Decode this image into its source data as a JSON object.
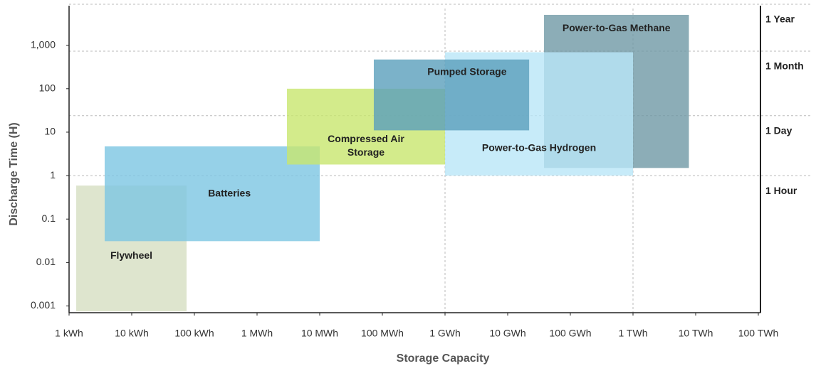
{
  "chart_data": {
    "type": "range-rect",
    "xlabel": "Storage Capacity",
    "ylabel": "Discharge Time (H)",
    "xscale": "log",
    "yscale": "log",
    "xlim": [
      1,
      100000000000
    ],
    "xticks": [
      {
        "value": 1,
        "label": "1 kWh"
      },
      {
        "value": 10,
        "label": "10 kWh"
      },
      {
        "value": 100,
        "label": "100 kWh"
      },
      {
        "value": 1000,
        "label": "1 MWh"
      },
      {
        "value": 10000,
        "label": "10 MWh"
      },
      {
        "value": 100000,
        "label": "100 MWh"
      },
      {
        "value": 1000000,
        "label": "1 GWh"
      },
      {
        "value": 10000000,
        "label": "10 GWh"
      },
      {
        "value": 100000000,
        "label": "100 GWh"
      },
      {
        "value": 1000000000,
        "label": "1 TWh"
      },
      {
        "value": 10000000000,
        "label": "10 TWh"
      },
      {
        "value": 100000000000,
        "label": "100 TWh"
      }
    ],
    "xgrid": [
      1000000,
      1000000000
    ],
    "ylim": [
      0.0007,
      7000
    ],
    "yticks": [
      0.001,
      0.01,
      0.1,
      1,
      10,
      100,
      {
        "value": 1000,
        "label": "1,000"
      }
    ],
    "y2ticks": [
      {
        "value": 1,
        "label": "1 Hour"
      },
      {
        "value": 24,
        "label": "1 Day"
      },
      {
        "value": 730,
        "label": "1 Month"
      },
      {
        "value": 8760,
        "label": "1 Year"
      }
    ],
    "series": [
      {
        "name": "Flywheel",
        "color": "#d6dfc2",
        "x": [
          1.3,
          75
        ],
        "y": [
          0.00075,
          0.59
        ]
      },
      {
        "name": "Batteries",
        "color": "#7cc6e2",
        "x": [
          3.7,
          10000
        ],
        "y": [
          0.031,
          4.7
        ]
      },
      {
        "name": "Compressed Air Storage",
        "color": "#c8e66e",
        "x": [
          3000,
          1000000
        ],
        "y": [
          1.8,
          100
        ]
      },
      {
        "name": "Power-to-Gas Methane",
        "color": "#6f98a5",
        "x": [
          38000000,
          7800000000
        ],
        "y": [
          1.5,
          5000
        ]
      },
      {
        "name": "Power-to-Gas Hydrogen",
        "color": "#b9e6f7",
        "x": [
          1000000,
          1000000000
        ],
        "y": [
          1,
          690
        ]
      },
      {
        "name": "Pumped Storage",
        "color": "#5a9fbc",
        "x": [
          73000,
          22000000
        ],
        "y": [
          11,
          470
        ]
      }
    ]
  }
}
